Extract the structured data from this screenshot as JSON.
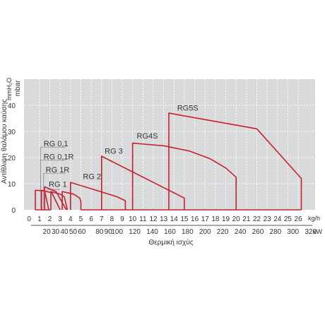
{
  "chart_data": {
    "type": "area",
    "ylabel": "Αντίθλιψη θαλάμου καύσης",
    "y_unit_left": "mbar",
    "y_unit_right": "mmH₂O",
    "xlabel": "Θερμική ισχύς",
    "x_unit_top": "kg/h",
    "x_unit_bottom": "kW",
    "xlim": [
      0,
      27
    ],
    "ylim": [
      0,
      45
    ],
    "y_ticks": [
      0,
      10,
      20,
      30,
      40
    ],
    "x_ticks_kgh": [
      0,
      1,
      2,
      3,
      4,
      5,
      6,
      7,
      8,
      9,
      10,
      11,
      12,
      13,
      14,
      15,
      16,
      17,
      18,
      19,
      20,
      21,
      22,
      23,
      24,
      25,
      26
    ],
    "x_ticks_kw": [
      {
        "label": "20",
        "kgh": 1.7
      },
      {
        "label": "30",
        "kgh": 2.55
      },
      {
        "label": "40",
        "kgh": 3.4
      },
      {
        "label": "50",
        "kgh": 4.25
      },
      {
        "label": "60",
        "kgh": 5.1
      },
      {
        "label": "80",
        "kgh": 6.8
      },
      {
        "label": "90",
        "kgh": 7.65
      },
      {
        "label": "100",
        "kgh": 8.5
      },
      {
        "label": "120",
        "kgh": 10.2
      },
      {
        "label": "140",
        "kgh": 11.9
      },
      {
        "label": "160",
        "kgh": 13.6
      },
      {
        "label": "180",
        "kgh": 15.3
      },
      {
        "label": "200",
        "kgh": 17.0
      },
      {
        "label": "220",
        "kgh": 18.7
      },
      {
        "label": "240",
        "kgh": 20.4
      },
      {
        "label": "260",
        "kgh": 22.1
      },
      {
        "label": "280",
        "kgh": 23.8
      },
      {
        "label": "300",
        "kgh": 25.5
      },
      {
        "label": "320",
        "kgh": 27.2
      }
    ],
    "grid": true,
    "background_color": "#d9dadb",
    "curve_color": "#c8202e",
    "series": [
      {
        "name": "RG 0,1",
        "points": [
          [
            0.6,
            0
          ],
          [
            0.6,
            7.5
          ],
          [
            1.5,
            7.3
          ],
          [
            1.9,
            0
          ]
        ],
        "label_at": [
          1.4,
          24.3
        ]
      },
      {
        "name": "RG 0,1R",
        "points": [
          [
            1.2,
            0
          ],
          [
            1.2,
            7.5
          ],
          [
            2.2,
            6.5
          ],
          [
            3.0,
            0
          ]
        ],
        "label_at": [
          1.4,
          19.3
        ]
      },
      {
        "name": "RG 1R",
        "points": [
          [
            1.5,
            0
          ],
          [
            1.5,
            8.8
          ],
          [
            2.6,
            7.0
          ],
          [
            3.6,
            0
          ]
        ],
        "label_at": [
          1.6,
          14.3
        ]
      },
      {
        "name": "RG 1",
        "points": [
          [
            2.1,
            0
          ],
          [
            2.1,
            7.0
          ],
          [
            3.0,
            6.0
          ],
          [
            3.4,
            5.0
          ],
          [
            3.7,
            0
          ]
        ],
        "label_at": [
          1.9,
          8.8
        ]
      },
      {
        "name": "RG 2",
        "points": [
          [
            3.2,
            0
          ],
          [
            3.2,
            7.0
          ],
          [
            4.3,
            6.0
          ],
          [
            4.9,
            4.5
          ],
          [
            5.0,
            3.0
          ],
          [
            5.0,
            0
          ]
        ],
        "label_at": [
          5.2,
          11.8
        ]
      },
      {
        "name": "",
        "points": [
          [
            4.0,
            0
          ],
          [
            4.0,
            10.5
          ],
          [
            8.5,
            5.0
          ],
          [
            9.3,
            3.5
          ],
          [
            9.3,
            0
          ]
        ],
        "label_at": null
      },
      {
        "name": "RG 3",
        "points": [
          [
            7.0,
            0
          ],
          [
            7.0,
            20.5
          ],
          [
            15.0,
            4.5
          ],
          [
            15.0,
            0
          ]
        ],
        "label_at": [
          7.3,
          21.5
        ]
      },
      {
        "name": "RG4S",
        "points": [
          [
            10.0,
            0
          ],
          [
            10.0,
            25.5
          ],
          [
            11.5,
            25.0
          ],
          [
            13.0,
            24.5
          ],
          [
            15.5,
            22.5
          ],
          [
            17.5,
            19.5
          ],
          [
            19.0,
            16.0
          ],
          [
            20.0,
            12.5
          ],
          [
            20.0,
            0
          ]
        ],
        "label_at": [
          10.4,
          27.3
        ]
      },
      {
        "name": "RG5S",
        "points": [
          [
            13.5,
            0
          ],
          [
            13.5,
            37.0
          ],
          [
            22.0,
            31.0
          ],
          [
            26.3,
            12.0
          ],
          [
            26.3,
            0
          ]
        ],
        "label_at": [
          14.3,
          38.0
        ]
      }
    ],
    "baseline_segments": [
      {
        "from": 0.6,
        "to": 2.1
      },
      {
        "from": 5.0,
        "to": 26.3
      }
    ],
    "label_connector_color": "#999999"
  }
}
